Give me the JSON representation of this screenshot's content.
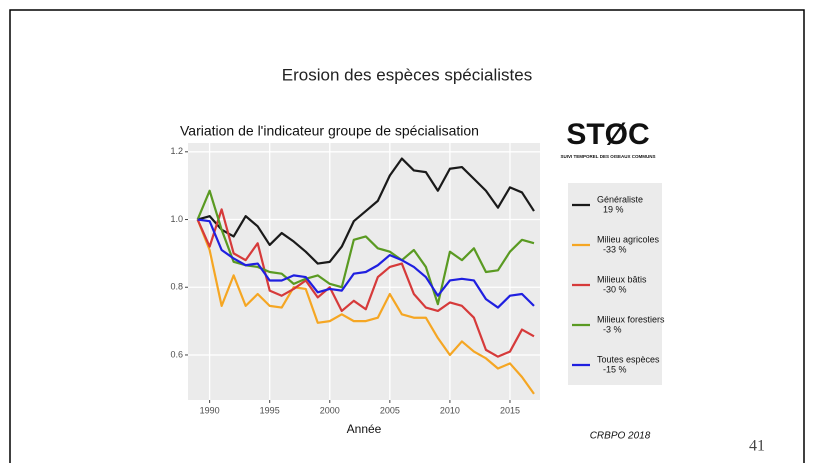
{
  "slide": {
    "title": "Erosion des espèces spécialistes",
    "page_number": "41",
    "source": "CRBPO 2018",
    "logo_title": "STØC",
    "logo_subtitle": "SUIVI TEMPOREL DES OISEAUX COMMUNS"
  },
  "chart_data": {
    "type": "line",
    "title": "Variation de l'indicateur groupe de spécialisation",
    "x_label": "Année",
    "x": [
      1989,
      1990,
      1991,
      1992,
      1993,
      1994,
      1995,
      1996,
      1997,
      1998,
      1999,
      2000,
      2001,
      2002,
      2003,
      2004,
      2005,
      2006,
      2007,
      2008,
      2009,
      2010,
      2011,
      2012,
      2013,
      2014,
      2015,
      2016,
      2017
    ],
    "xlim": [
      1988.2,
      2017.5
    ],
    "xticks": [
      1990,
      1995,
      2000,
      2005,
      2010,
      2015
    ],
    "ylim": [
      0.467,
      1.226
    ],
    "yticks": [
      0.6,
      0.8,
      {
        "value": 1,
        "label": "1.0"
      },
      {
        "value": 1.2,
        "label": "1.2"
      }
    ],
    "grid": true,
    "series": [
      {
        "name": "Généraliste",
        "note": "19 %",
        "color": "#1a1a1a",
        "values": [
          1.0,
          1.01,
          0.97,
          0.95,
          1.01,
          0.98,
          0.925,
          0.96,
          0.935,
          0.905,
          0.87,
          0.875,
          0.92,
          0.995,
          1.025,
          1.055,
          1.13,
          1.18,
          1.145,
          1.14,
          1.085,
          1.15,
          1.155,
          1.12,
          1.085,
          1.035,
          1.095,
          1.08,
          1.025
        ]
      },
      {
        "name": "Milieu agricoles",
        "note": "-33 %",
        "color": "#f5a623",
        "values": [
          1.0,
          0.91,
          0.745,
          0.835,
          0.745,
          0.78,
          0.745,
          0.74,
          0.8,
          0.795,
          0.695,
          0.7,
          0.72,
          0.7,
          0.7,
          0.71,
          0.78,
          0.72,
          0.71,
          0.71,
          0.65,
          0.6,
          0.64,
          0.61,
          0.59,
          0.56,
          0.575,
          0.535,
          0.485
        ]
      },
      {
        "name": "Milieux bâtis",
        "note": "-30 %",
        "color": "#d63a3a",
        "values": [
          1.0,
          0.92,
          1.03,
          0.9,
          0.88,
          0.93,
          0.79,
          0.775,
          0.795,
          0.82,
          0.77,
          0.8,
          0.73,
          0.76,
          0.735,
          0.83,
          0.86,
          0.87,
          0.78,
          0.74,
          0.73,
          0.755,
          0.745,
          0.71,
          0.615,
          0.595,
          0.61,
          0.675,
          0.655
        ]
      },
      {
        "name": "Milieux forestiers",
        "note": "-3 %",
        "color": "#5a9a22",
        "values": [
          1.0,
          1.085,
          0.97,
          0.875,
          0.865,
          0.86,
          0.845,
          0.84,
          0.81,
          0.825,
          0.835,
          0.81,
          0.8,
          0.94,
          0.95,
          0.915,
          0.905,
          0.88,
          0.91,
          0.86,
          0.75,
          0.905,
          0.88,
          0.915,
          0.845,
          0.85,
          0.905,
          0.94,
          0.93
        ]
      },
      {
        "name": "Toutes espèces",
        "note": "-15 %",
        "color": "#1f1fe0",
        "values": [
          1.0,
          0.995,
          0.91,
          0.885,
          0.865,
          0.87,
          0.82,
          0.82,
          0.835,
          0.83,
          0.785,
          0.795,
          0.79,
          0.84,
          0.845,
          0.865,
          0.895,
          0.88,
          0.86,
          0.83,
          0.775,
          0.82,
          0.825,
          0.82,
          0.765,
          0.74,
          0.775,
          0.78,
          0.745
        ]
      }
    ]
  }
}
